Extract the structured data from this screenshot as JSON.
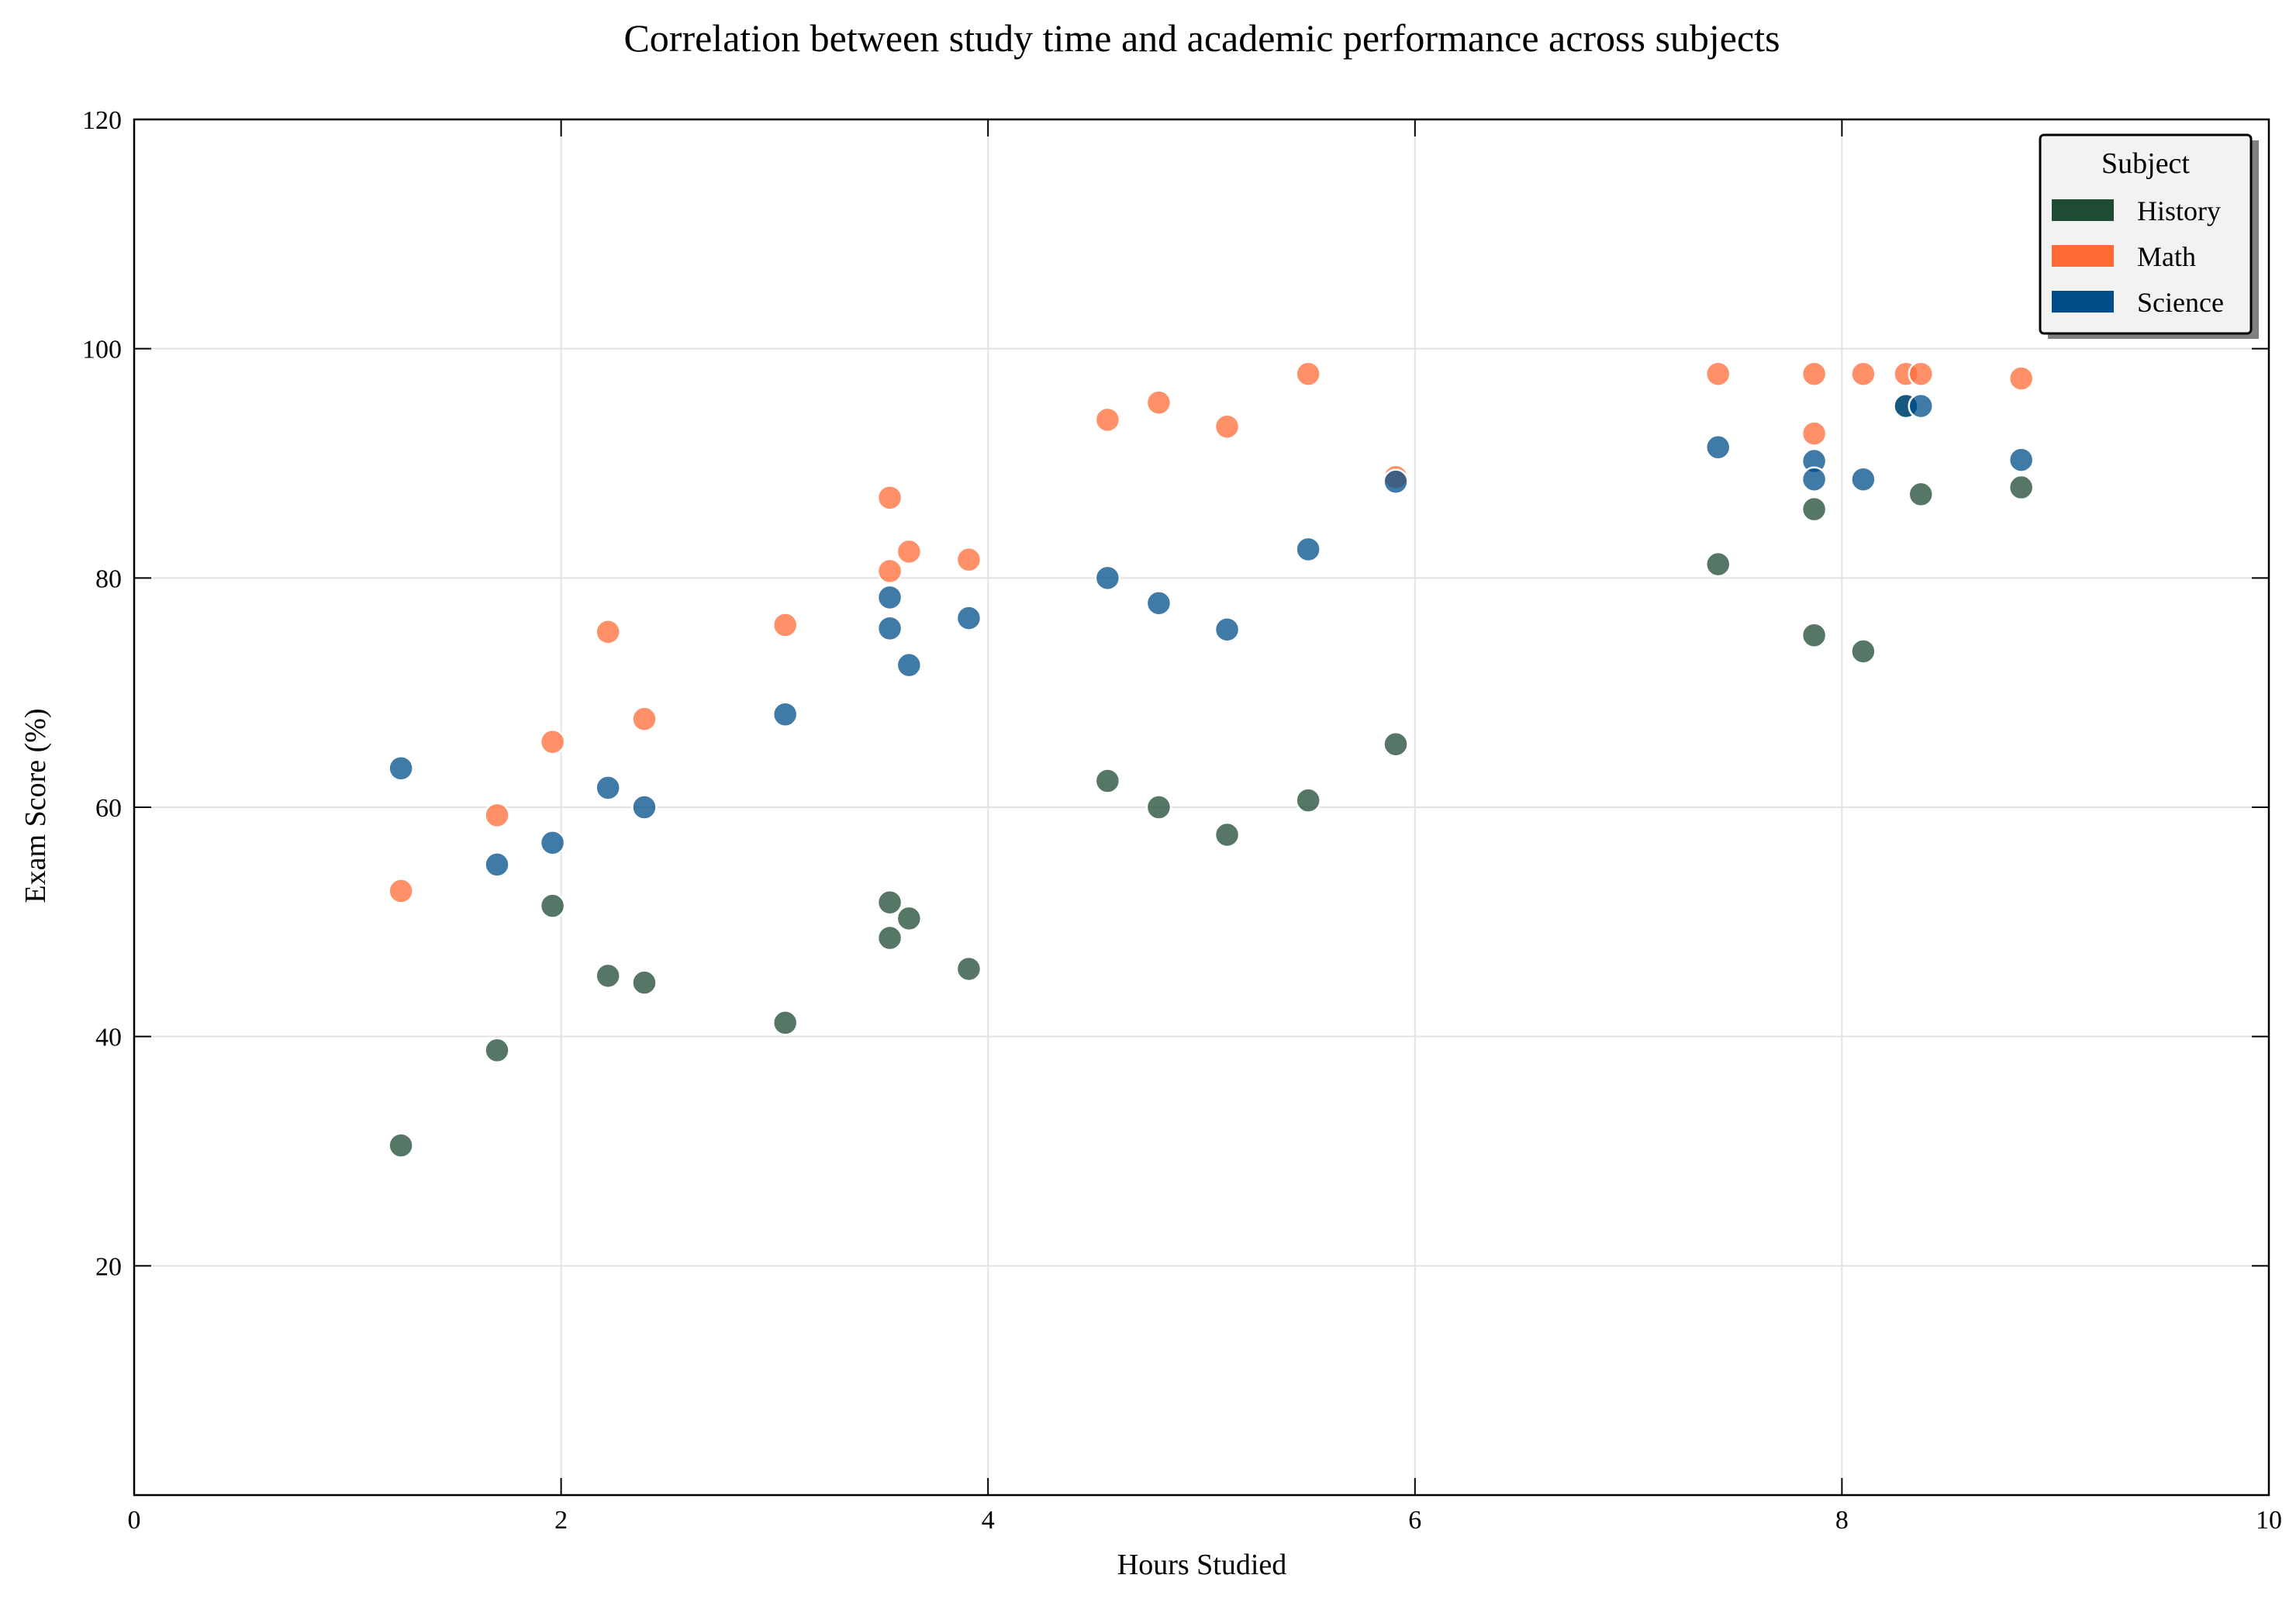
{
  "chart_data": {
    "type": "scatter",
    "title": "Correlation between study time and academic performance across subjects",
    "xlabel": "Hours Studied",
    "ylabel": "Exam Score (%)",
    "xlim": [
      0,
      10
    ],
    "ylim": [
      0,
      120
    ],
    "xticks": [
      0,
      2,
      4,
      6,
      8,
      10
    ],
    "yticks": [
      20,
      40,
      60,
      80,
      100,
      120
    ],
    "grid": true,
    "legend": {
      "title": "Subject",
      "placement": "top-right"
    },
    "x": [
      1.25,
      1.7,
      1.96,
      2.22,
      2.39,
      3.05,
      3.54,
      3.54,
      3.63,
      3.91,
      4.56,
      4.8,
      5.12,
      5.5,
      5.91,
      7.42,
      7.87,
      7.87,
      8.1,
      8.3,
      8.37,
      8.84
    ],
    "series": [
      {
        "name": "History",
        "color": "#1f4a33",
        "values": [
          30.5,
          38.8,
          51.4,
          45.3,
          44.7,
          41.2,
          51.7,
          48.6,
          50.3,
          45.9,
          62.3,
          60.0,
          57.6,
          60.6,
          65.5,
          81.2,
          86.0,
          75.0,
          73.6,
          95.0,
          87.3,
          87.9
        ]
      },
      {
        "name": "Math",
        "color": "#ff6b35",
        "values": [
          52.7,
          59.3,
          65.7,
          75.3,
          67.7,
          75.9,
          87.0,
          80.6,
          82.3,
          81.6,
          93.8,
          95.3,
          93.2,
          97.8,
          88.8,
          97.8,
          97.8,
          92.6,
          97.8,
          97.8,
          97.8,
          97.4
        ]
      },
      {
        "name": "Science",
        "color": "#004e89",
        "values": [
          63.4,
          55.0,
          56.9,
          61.7,
          60.0,
          68.1,
          78.3,
          75.6,
          72.4,
          76.5,
          80.0,
          77.8,
          75.5,
          82.5,
          88.4,
          91.4,
          90.2,
          88.6,
          88.6,
          95.0,
          95.0,
          90.3
        ]
      }
    ]
  }
}
